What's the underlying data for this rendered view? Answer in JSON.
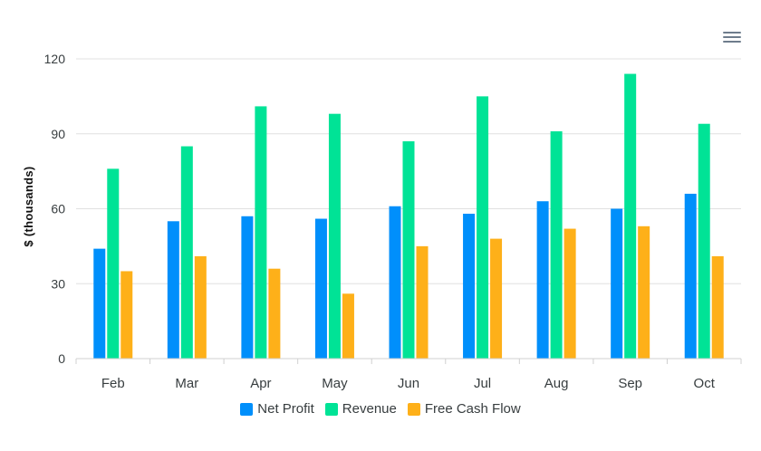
{
  "chart_data": {
    "type": "bar",
    "categories": [
      "Feb",
      "Mar",
      "Apr",
      "May",
      "Jun",
      "Jul",
      "Aug",
      "Sep",
      "Oct"
    ],
    "series": [
      {
        "name": "Net Profit",
        "color": "#008ffb",
        "values": [
          44,
          55,
          57,
          56,
          61,
          58,
          63,
          60,
          66
        ]
      },
      {
        "name": "Revenue",
        "color": "#00e396",
        "values": [
          76,
          85,
          101,
          98,
          87,
          105,
          91,
          114,
          94
        ]
      },
      {
        "name": "Free Cash Flow",
        "color": "#feb019",
        "values": [
          35,
          41,
          36,
          26,
          45,
          48,
          52,
          53,
          41
        ]
      }
    ],
    "ylabel": "$ (thousands)",
    "ylim": [
      0,
      120
    ],
    "yticks": [
      "0",
      "30",
      "60",
      "90",
      "120"
    ],
    "grid": true,
    "legend_position": "bottom-center"
  },
  "toolbar": {
    "menu_icon": "hamburger-menu-icon"
  }
}
